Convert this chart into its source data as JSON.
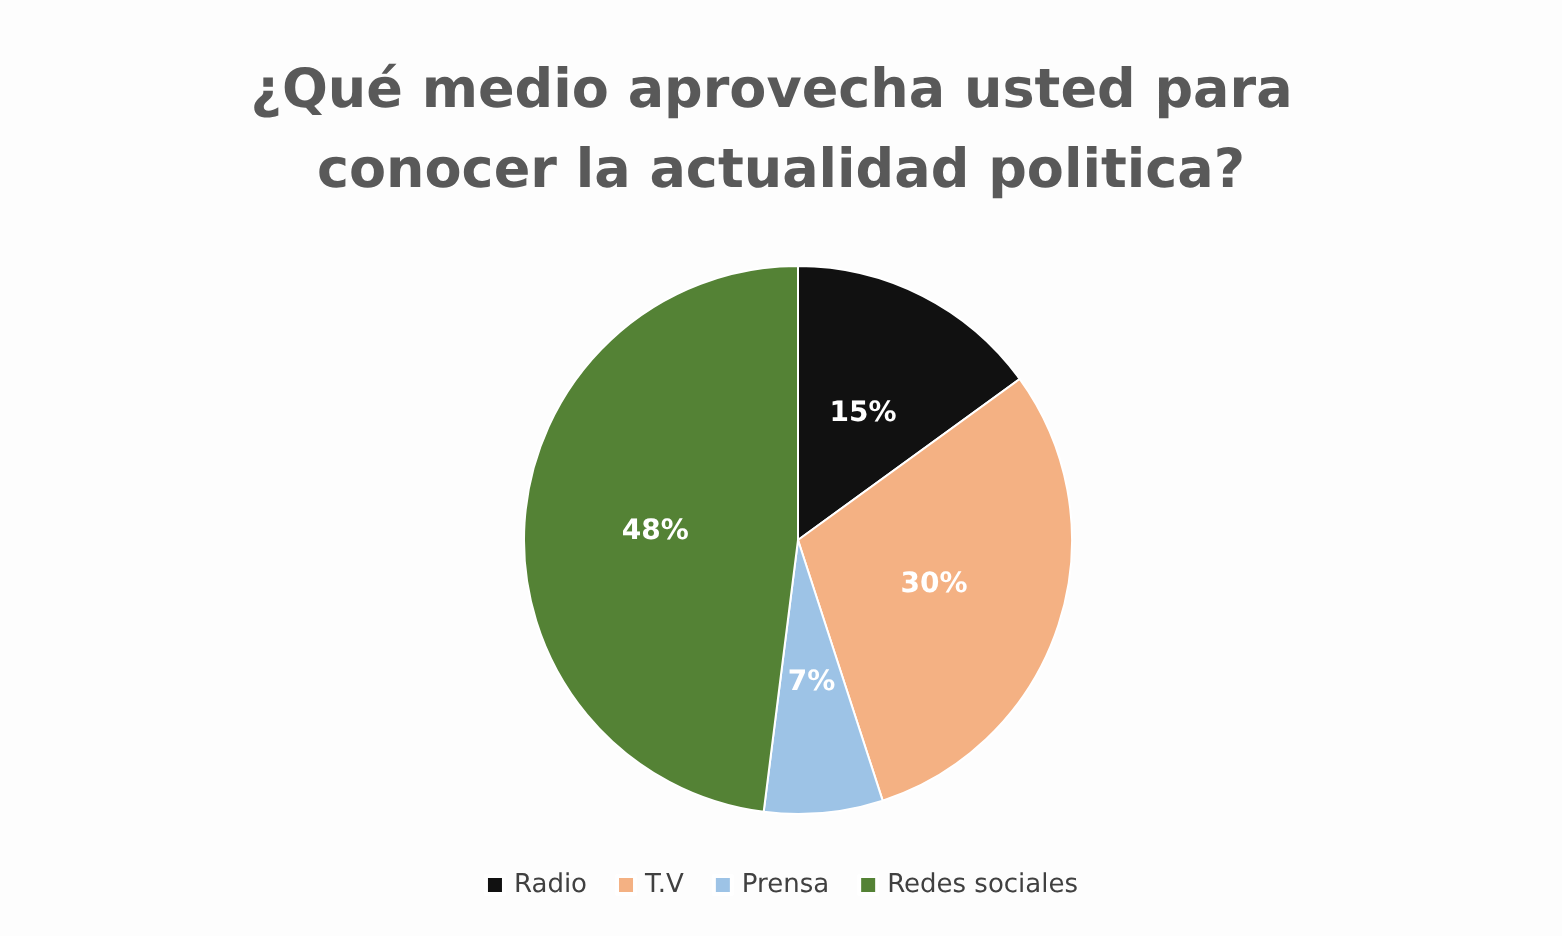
{
  "chart_data": {
    "type": "pie",
    "title": "¿Qué medio aprovecha usted para conocer la actualidad politica?",
    "categories": [
      "Radio",
      "T.V",
      "Prensa",
      "Redes sociales"
    ],
    "values": [
      15,
      30,
      7,
      48
    ],
    "colors": [
      "#111111",
      "#f4b183",
      "#9dc3e6",
      "#548235"
    ],
    "value_labels": [
      "15%",
      "30%",
      "7%",
      "48%"
    ],
    "legend": "bottom"
  }
}
